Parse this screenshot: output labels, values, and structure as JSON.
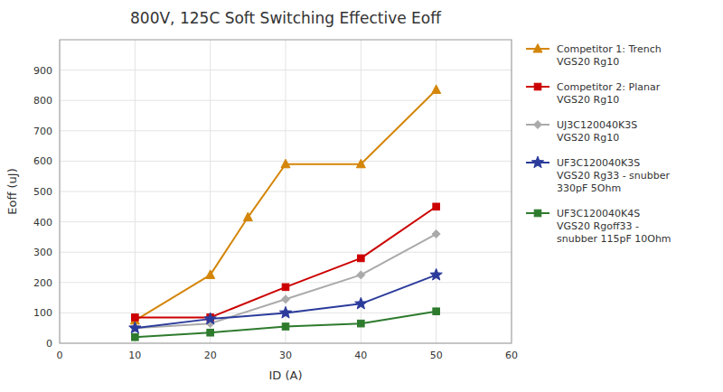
{
  "chart_data": {
    "type": "line",
    "title": "800V, 125C Soft Switching Effective Eoff",
    "xlabel": "ID (A)",
    "ylabel": "Eoff (uJ)",
    "xlim": [
      0,
      60
    ],
    "ylim": [
      0,
      1000
    ],
    "xticks": [
      0,
      10,
      20,
      30,
      40,
      50,
      60
    ],
    "yticks": [
      0,
      100,
      200,
      300,
      400,
      500,
      600,
      700,
      800,
      900
    ],
    "grid": true,
    "legend": "right",
    "series": [
      {
        "name": "Competitor 1: Trench\nVGS20 Rg10",
        "color": "#D4860A",
        "marker": "triangle",
        "x": [
          10,
          20,
          25,
          30,
          40,
          50
        ],
        "values": [
          75,
          225,
          415,
          590,
          590,
          835
        ]
      },
      {
        "name": "Competitor 2: Planar\nVGS20 Rg10",
        "color": "#CC0000",
        "marker": "square",
        "x": [
          10,
          20,
          30,
          40,
          50
        ],
        "values": [
          85,
          85,
          185,
          280,
          450
        ]
      },
      {
        "name": "UJ3C120040K3S\nVGS20 Rg10",
        "color": "#AAAAAA",
        "marker": "diamond",
        "x": [
          10,
          20,
          30,
          40,
          50
        ],
        "values": [
          50,
          65,
          145,
          225,
          360
        ]
      },
      {
        "name": "UF3C120040K3S\nVGS20 Rg33 - snubber\n330pF 5Ohm",
        "color": "#2B3B9B",
        "marker": "star",
        "x": [
          10,
          20,
          30,
          40,
          50
        ],
        "values": [
          50,
          80,
          100,
          130,
          225
        ]
      },
      {
        "name": "UF3C120040K4S\nVGS20 Rgoff33 -\nsnubber 115pF 10Ohm",
        "color": "#2E7B2E",
        "marker": "square",
        "x": [
          10,
          20,
          30,
          40,
          50
        ],
        "values": [
          20,
          35,
          55,
          65,
          105
        ]
      }
    ]
  }
}
